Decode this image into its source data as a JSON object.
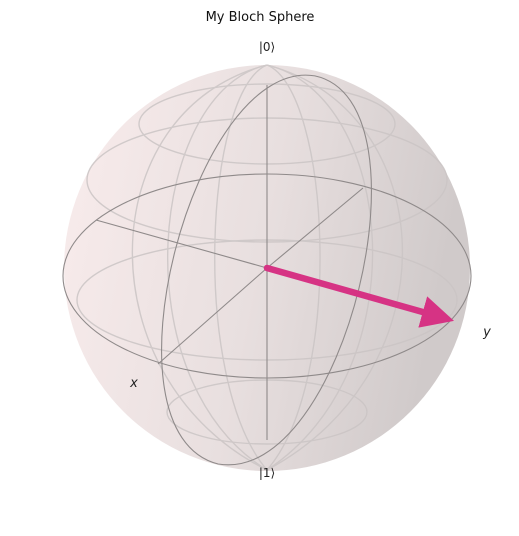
{
  "title": "My Bloch Sphere",
  "labels": {
    "ket0": "|0⟩",
    "ket1": "|1⟩",
    "x": "x",
    "y": "y"
  },
  "state_vector": {
    "color": "#d63384"
  },
  "colors": {
    "sphere_fill_light": "#f7e9e9",
    "sphere_fill_dark": "#d2cbcb",
    "wire_front": "#8f8a8a",
    "wire_back": "#c9c3c3"
  }
}
